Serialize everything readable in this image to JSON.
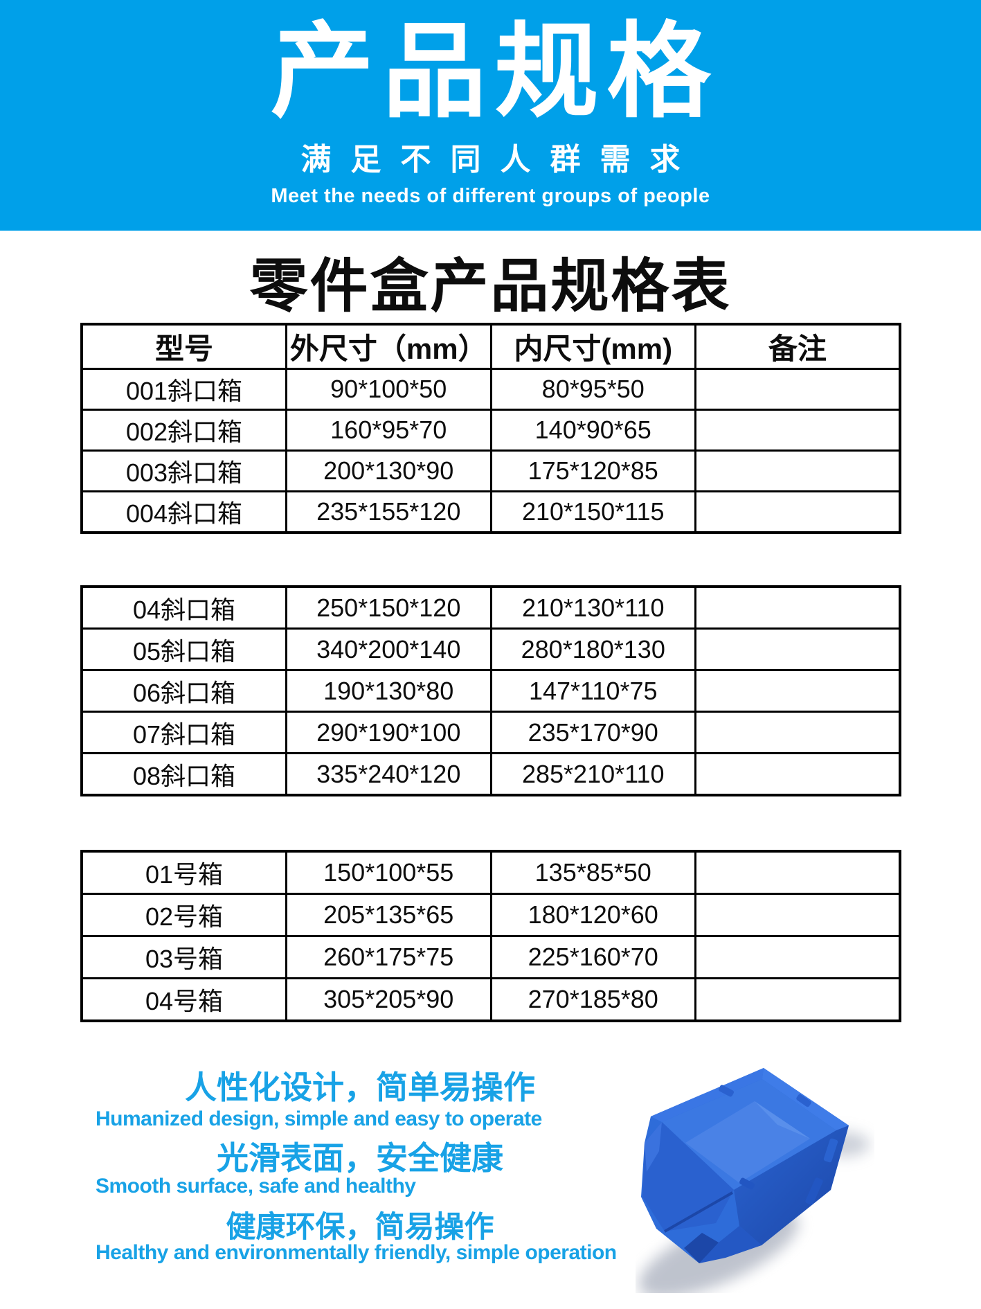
{
  "header": {
    "title": "产品规格",
    "subtitle_cn": "满足不同人群需求",
    "subtitle_en": "Meet the needs of different groups of people"
  },
  "spec_sheet": {
    "title": "零件盒产品规格表",
    "columns": [
      "型号",
      "外尺寸（mm）",
      "内尺寸(mm)",
      "备注"
    ],
    "groups": [
      {
        "has_header": true,
        "rows": [
          [
            "001斜口箱",
            "90*100*50",
            "80*95*50",
            ""
          ],
          [
            "002斜口箱",
            "160*95*70",
            "140*90*65",
            ""
          ],
          [
            "003斜口箱",
            "200*130*90",
            "175*120*85",
            ""
          ],
          [
            "004斜口箱",
            "235*155*120",
            "210*150*115",
            ""
          ]
        ]
      },
      {
        "has_header": false,
        "rows": [
          [
            "04斜口箱",
            "250*150*120",
            "210*130*110",
            ""
          ],
          [
            "05斜口箱",
            "340*200*140",
            "280*180*130",
            ""
          ],
          [
            "06斜口箱",
            "190*130*80",
            "147*110*75",
            ""
          ],
          [
            "07斜口箱",
            "290*190*100",
            "235*170*90",
            ""
          ],
          [
            "08斜口箱",
            "335*240*120",
            "285*210*110",
            ""
          ]
        ]
      },
      {
        "has_header": false,
        "rows": [
          [
            "01号箱",
            "150*100*55",
            "135*85*50",
            ""
          ],
          [
            "02号箱",
            "205*135*65",
            "180*120*60",
            ""
          ],
          [
            "03号箱",
            "260*175*75",
            "225*160*70",
            ""
          ],
          [
            "04号箱",
            "305*205*90",
            "270*185*80",
            ""
          ]
        ]
      }
    ]
  },
  "features": [
    {
      "cn": "人性化设计，简单易操作",
      "en": "Humanized design, simple and easy to operate"
    },
    {
      "cn": "光滑表面，安全健康",
      "en": "Smooth surface, safe and healthy"
    },
    {
      "cn": "健康环保，简易操作",
      "en": "Healthy and environmentally friendly, simple operation"
    }
  ],
  "product_image": {
    "name": "blue-parts-bin",
    "description": "蓝色斜口零件盒"
  },
  "colors": {
    "header_bg": "#00a0e9",
    "accent_text": "#18a2e6",
    "table_border": "#000000",
    "body_text": "#0d0d0d",
    "bin_main": "#2e6cd9",
    "bin_light": "#4a82e6",
    "bin_dark": "#2255c2"
  }
}
